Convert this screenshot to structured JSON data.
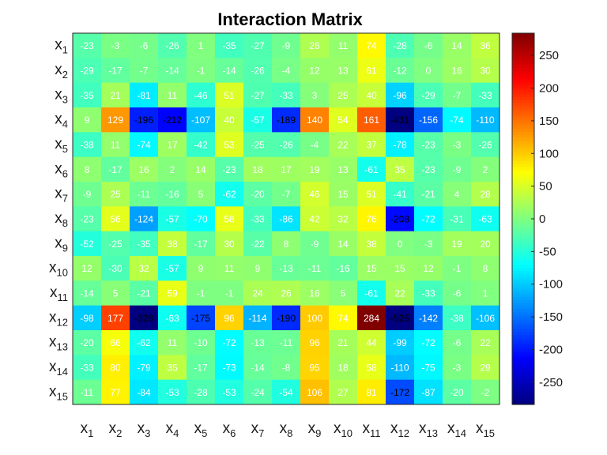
{
  "chart_data": {
    "type": "heatmap",
    "title": "Interaction Matrix",
    "row_labels": [
      {
        "base": "x",
        "sub": "1"
      },
      {
        "base": "x",
        "sub": "2"
      },
      {
        "base": "x",
        "sub": "3"
      },
      {
        "base": "x",
        "sub": "4"
      },
      {
        "base": "x",
        "sub": "5"
      },
      {
        "base": "x",
        "sub": "6"
      },
      {
        "base": "x",
        "sub": "7"
      },
      {
        "base": "x",
        "sub": "8"
      },
      {
        "base": "x",
        "sub": "9"
      },
      {
        "base": "x",
        "sub": "10"
      },
      {
        "base": "x",
        "sub": "11"
      },
      {
        "base": "x",
        "sub": "12"
      },
      {
        "base": "x",
        "sub": "13"
      },
      {
        "base": "x",
        "sub": "14"
      },
      {
        "base": "x",
        "sub": "15"
      }
    ],
    "column_labels": [
      {
        "base": "x",
        "sub": "1"
      },
      {
        "base": "x",
        "sub": "2"
      },
      {
        "base": "x",
        "sub": "3"
      },
      {
        "base": "x",
        "sub": "4"
      },
      {
        "base": "x",
        "sub": "5"
      },
      {
        "base": "x",
        "sub": "6"
      },
      {
        "base": "x",
        "sub": "7"
      },
      {
        "base": "x",
        "sub": "8"
      },
      {
        "base": "x",
        "sub": "9"
      },
      {
        "base": "x",
        "sub": "10"
      },
      {
        "base": "x",
        "sub": "11"
      },
      {
        "base": "x",
        "sub": "12"
      },
      {
        "base": "x",
        "sub": "13"
      },
      {
        "base": "x",
        "sub": "14"
      },
      {
        "base": "x",
        "sub": "15"
      }
    ],
    "values": [
      [
        -23,
        -3,
        -6,
        -26,
        1,
        -35,
        -27,
        -9,
        26,
        11,
        74,
        -28,
        -6,
        14,
        36
      ],
      [
        -29,
        -17,
        -7,
        -14,
        -1,
        -14,
        -26,
        -4,
        12,
        13,
        61,
        -12,
        0,
        16,
        30
      ],
      [
        -35,
        21,
        -81,
        11,
        -46,
        51,
        -27,
        -33,
        3,
        25,
        40,
        -96,
        -29,
        -7,
        -33
      ],
      [
        9,
        129,
        -196,
        -212,
        -107,
        40,
        -57,
        -189,
        140,
        54,
        161,
        -431,
        -156,
        -74,
        -110
      ],
      [
        -38,
        11,
        -74,
        17,
        -42,
        53,
        -25,
        -26,
        -4,
        22,
        37,
        -78,
        -23,
        -3,
        -26
      ],
      [
        8,
        -17,
        16,
        2,
        14,
        -23,
        18,
        17,
        19,
        13,
        -61,
        35,
        -23,
        -9,
        2
      ],
      [
        -9,
        25,
        -11,
        -16,
        5,
        -62,
        -20,
        -7,
        46,
        15,
        51,
        -41,
        -21,
        4,
        28
      ],
      [
        -23,
        56,
        -124,
        -57,
        -70,
        58,
        -33,
        -86,
        42,
        32,
        76,
        -208,
        -72,
        -31,
        -63
      ],
      [
        -52,
        -25,
        -35,
        38,
        -17,
        30,
        -22,
        8,
        -9,
        14,
        38,
        0,
        -3,
        19,
        20
      ],
      [
        12,
        -30,
        32,
        -57,
        9,
        11,
        9,
        -13,
        -11,
        -16,
        15,
        15,
        12,
        -1,
        8
      ],
      [
        -14,
        5,
        -21,
        59,
        -1,
        -1,
        24,
        26,
        16,
        5,
        -61,
        22,
        -33,
        -6,
        1
      ],
      [
        -98,
        177,
        -328,
        -63,
        -175,
        96,
        -114,
        -190,
        100,
        74,
        284,
        -525,
        -142,
        -38,
        -106
      ],
      [
        -20,
        66,
        -62,
        11,
        -10,
        -72,
        -13,
        -11,
        96,
        21,
        44,
        -99,
        -72,
        -6,
        22
      ],
      [
        -33,
        80,
        -79,
        35,
        -17,
        -73,
        -14,
        -8,
        95,
        18,
        58,
        -110,
        -75,
        -3,
        29
      ],
      [
        -11,
        77,
        -84,
        -53,
        -28,
        -53,
        -24,
        -54,
        106,
        27,
        81,
        -172,
        -87,
        -20,
        -2
      ]
    ],
    "colormap": "jet",
    "clim": [
      -284,
      284
    ],
    "colorbar": {
      "ticks": [
        250,
        200,
        150,
        100,
        50,
        0,
        -50,
        -100,
        -150,
        -200,
        -250
      ],
      "tick_labels": [
        "250",
        "200",
        "150",
        "100",
        "50",
        "0",
        "-50",
        "-100",
        "-150",
        "-200",
        "-250"
      ],
      "placement": "right"
    },
    "grid": false
  }
}
